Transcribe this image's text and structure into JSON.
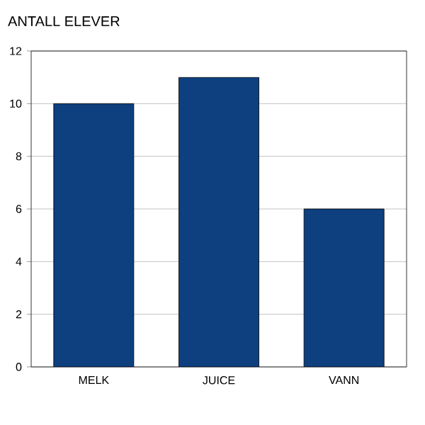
{
  "chart_data": {
    "type": "bar",
    "title": "ANTALL ELEVER",
    "categories": [
      "MELK",
      "JUICE",
      "VANN"
    ],
    "values": [
      10,
      11,
      6
    ],
    "color": "#0e3f7f",
    "ylim": [
      0,
      12
    ],
    "yticks": [
      0,
      2,
      4,
      6,
      8,
      10,
      12
    ],
    "grid": "y"
  }
}
